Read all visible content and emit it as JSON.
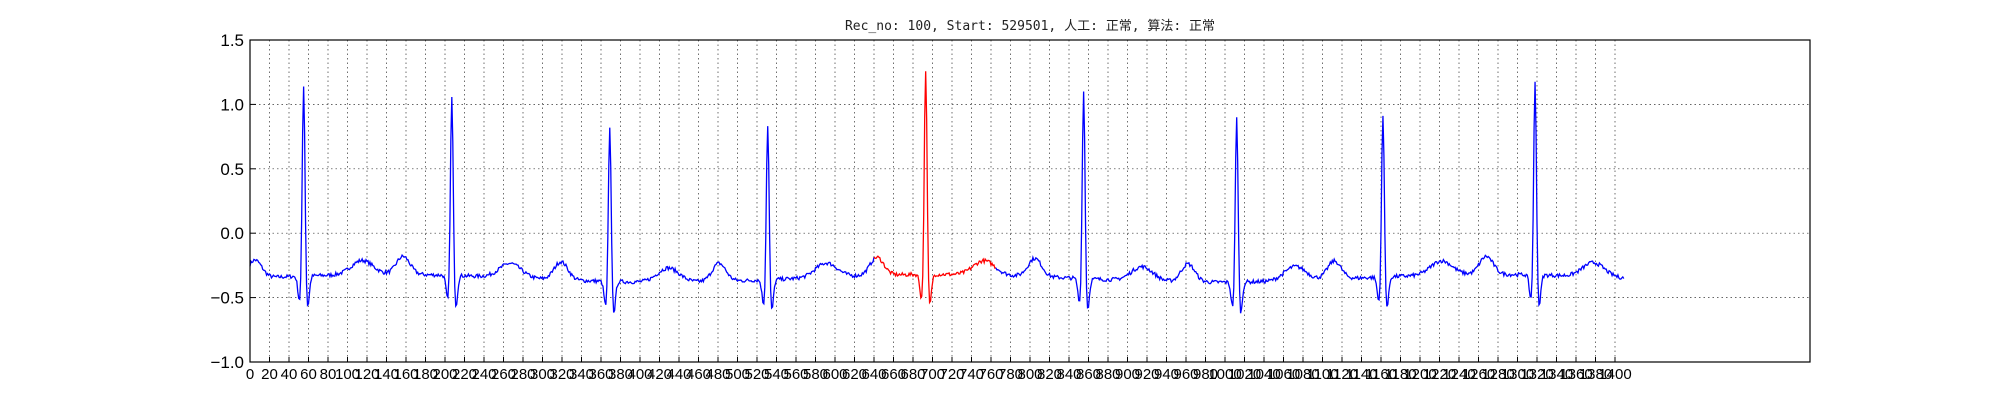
{
  "chart_data": {
    "type": "line",
    "title": "Rec_no: 100, Start: 529501, 人工: 正常, 算法: 正常",
    "xlabel": "",
    "ylabel": "",
    "xlim": [
      0,
      1600
    ],
    "ylim": [
      -1.0,
      1.5
    ],
    "yticks": [
      -1.0,
      -0.5,
      0.0,
      0.5,
      1.0,
      1.5
    ],
    "yticklabels": [
      "−1.0",
      "−0.5",
      "0.0",
      "0.5",
      "1.0",
      "1.5"
    ],
    "xtick_step": 20,
    "xtick_first": 0,
    "xtick_last": 1400,
    "grid": true,
    "series_colors": {
      "normal": "#0000ff",
      "highlight": "#ff0000"
    },
    "n_samples": 1410,
    "r_peaks": [
      {
        "x": 55,
        "amp": 1.17
      },
      {
        "x": 207,
        "amp": 1.07
      },
      {
        "x": 369,
        "amp": 0.87
      },
      {
        "x": 531,
        "amp": 0.89
      },
      {
        "x": 693,
        "amp": 1.28
      },
      {
        "x": 855,
        "amp": 1.14
      },
      {
        "x": 1012,
        "amp": 0.96
      },
      {
        "x": 1162,
        "amp": 0.94
      },
      {
        "x": 1318,
        "amp": 1.18
      }
    ],
    "highlight_range": [
      640,
      765
    ],
    "baseline": -0.35
  }
}
